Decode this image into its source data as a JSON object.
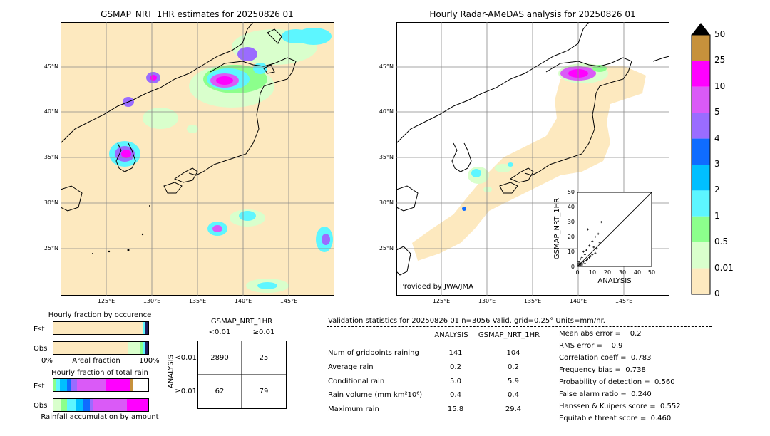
{
  "map_left": {
    "title": "GSMAP_NRT_1HR estimates for 20250826 01",
    "lat_labels": [
      "45°N",
      "40°N",
      "35°N",
      "30°N",
      "25°N"
    ],
    "lon_labels": [
      "125°E",
      "130°E",
      "135°E",
      "140°E",
      "145°E"
    ]
  },
  "map_right": {
    "title": "Hourly Radar-AMeDAS analysis for 20250826 01",
    "lat_labels": [
      "45°N",
      "40°N",
      "35°N",
      "30°N",
      "25°N"
    ],
    "lon_labels": [
      "125°E",
      "130°E",
      "135°E",
      "140°E",
      "145°E"
    ],
    "credit": "Provided by JWA/JMA"
  },
  "colorbar": {
    "labels": [
      "50",
      "25",
      "10",
      "5",
      "4",
      "3",
      "2",
      "1",
      "0.5",
      "0.01",
      "0"
    ],
    "colors": [
      "#c6913c",
      "#ff00ff",
      "#da5af7",
      "#9a6cff",
      "#0f6cff",
      "#00bfff",
      "#5df6ff",
      "#8cff8c",
      "#d9ffcc",
      "#fde9bf"
    ]
  },
  "scatter": {
    "ylabel": "GSMAP_NRT_1HR",
    "xlabel": "ANALYSIS",
    "ticks": [
      "0",
      "10",
      "20",
      "30",
      "40",
      "50"
    ]
  },
  "occurrence": {
    "title": "Hourly fraction by occurence",
    "row_labels": [
      "Est",
      "Obs"
    ],
    "axis_left": "0%",
    "axis_mid": "Areal fraction",
    "axis_right": "100%"
  },
  "total_rain": {
    "title": "Hourly fraction of total rain",
    "row_labels": [
      "Est",
      "Obs"
    ],
    "axis_caption": "Rainfall accumulation by amount"
  },
  "contingency": {
    "title": "GSMAP_NRT_1HR",
    "col_labels": [
      "<0.01",
      "≥0.01"
    ],
    "row_axis": "ANALYSIS",
    "row_labels": [
      "<0.01",
      "≥0.01"
    ],
    "cells": [
      "2890",
      "25",
      "62",
      "79"
    ]
  },
  "validation": {
    "header": "Validation statistics for 20250826 01  n=3056 Valid. grid=0.25° Units=mm/hr.",
    "col_analysis": "ANALYSIS",
    "col_gsmap": "GSMAP_NRT_1HR",
    "rows": [
      {
        "label": "Num of gridpoints raining",
        "analysis": "141",
        "gsmap": "104"
      },
      {
        "label": "Average rain",
        "analysis": "0.2",
        "gsmap": "0.2"
      },
      {
        "label": "Conditional rain",
        "analysis": "5.0",
        "gsmap": "5.9"
      },
      {
        "label": "Rain volume (mm km²10⁶)",
        "analysis": "0.4",
        "gsmap": "0.4"
      },
      {
        "label": "Maximum rain",
        "analysis": "15.8",
        "gsmap": "29.4"
      }
    ],
    "scores": [
      "Mean abs error =    0.2",
      "RMS error =    0.9",
      "Correlation coeff =  0.783",
      "Frequency bias =  0.738",
      "Probability of detection =  0.560",
      "False alarm ratio =  0.240",
      "Hanssen & Kuipers score =  0.552",
      "Equitable threat score =  0.460"
    ]
  },
  "chart_data": [
    {
      "type": "heatmap",
      "title": "GSMAP_NRT_1HR estimates for 20250826 01",
      "x_ticks": [
        "125°E",
        "130°E",
        "135°E",
        "140°E",
        "145°E"
      ],
      "y_ticks": [
        "45°N",
        "40°N",
        "35°N",
        "30°N",
        "25°N"
      ]
    },
    {
      "type": "heatmap",
      "title": "Hourly Radar-AMeDAS analysis for 20250826 01",
      "x_ticks": [
        "125°E",
        "130°E",
        "135°E",
        "140°E",
        "145°E"
      ],
      "y_ticks": [
        "45°N",
        "40°N",
        "35°N",
        "30°N",
        "25°N"
      ]
    },
    {
      "type": "scatter",
      "xlabel": "ANALYSIS",
      "ylabel": "GSMAP_NRT_1HR",
      "xlim": [
        0,
        50
      ],
      "ylim": [
        0,
        50
      ],
      "points": [
        [
          1,
          1
        ],
        [
          2,
          1
        ],
        [
          3,
          2
        ],
        [
          1,
          3
        ],
        [
          4,
          3
        ],
        [
          5,
          2
        ],
        [
          2,
          5
        ],
        [
          6,
          4
        ],
        [
          3,
          6
        ],
        [
          7,
          5
        ],
        [
          8,
          6
        ],
        [
          5,
          8
        ],
        [
          9,
          7
        ],
        [
          10,
          8
        ],
        [
          12,
          9
        ],
        [
          4,
          10
        ],
        [
          6,
          11
        ],
        [
          11,
          13
        ],
        [
          13,
          12
        ],
        [
          15,
          16
        ],
        [
          8,
          14
        ],
        [
          10,
          17
        ],
        [
          12,
          20
        ],
        [
          16,
          30
        ],
        [
          7,
          25
        ],
        [
          14,
          22
        ],
        [
          2,
          2
        ],
        [
          3,
          1
        ],
        [
          1,
          2
        ],
        [
          5,
          5
        ]
      ]
    },
    {
      "type": "table",
      "title": "GSMAP_NRT_1HR",
      "columns": [
        "<0.01",
        "≥0.01"
      ],
      "rows": [
        [
          "2890",
          "25"
        ],
        [
          "62",
          "79"
        ]
      ]
    }
  ]
}
